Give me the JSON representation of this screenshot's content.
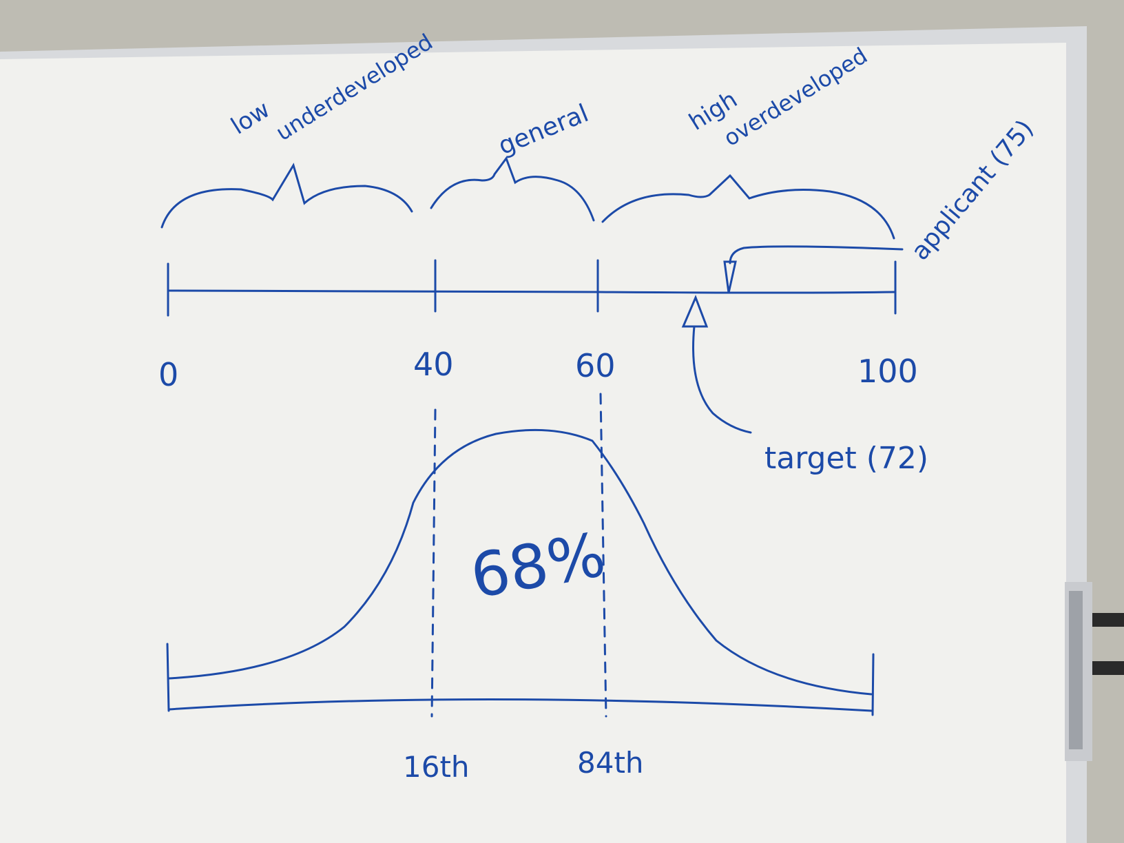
{
  "board": {
    "colors": {
      "marker": "#1c4aa8",
      "board": "#f2f2ef",
      "frame": "#d7d9dc",
      "wall": "#bdbbb2"
    }
  },
  "top_scale": {
    "ticks": [
      {
        "value": "0"
      },
      {
        "value": "40"
      },
      {
        "value": "60"
      },
      {
        "value": "100"
      }
    ],
    "bands": [
      {
        "line1": "low",
        "line2": "underdeveloped"
      },
      {
        "line1": "general"
      },
      {
        "line1": "high",
        "line2": "overdeveloped"
      }
    ],
    "target": {
      "label": "target (72)"
    },
    "applicant": {
      "label": "applicant (75)"
    }
  },
  "bell_curve": {
    "center_label": "68%",
    "left_marker": "16th",
    "right_marker": "84th"
  }
}
